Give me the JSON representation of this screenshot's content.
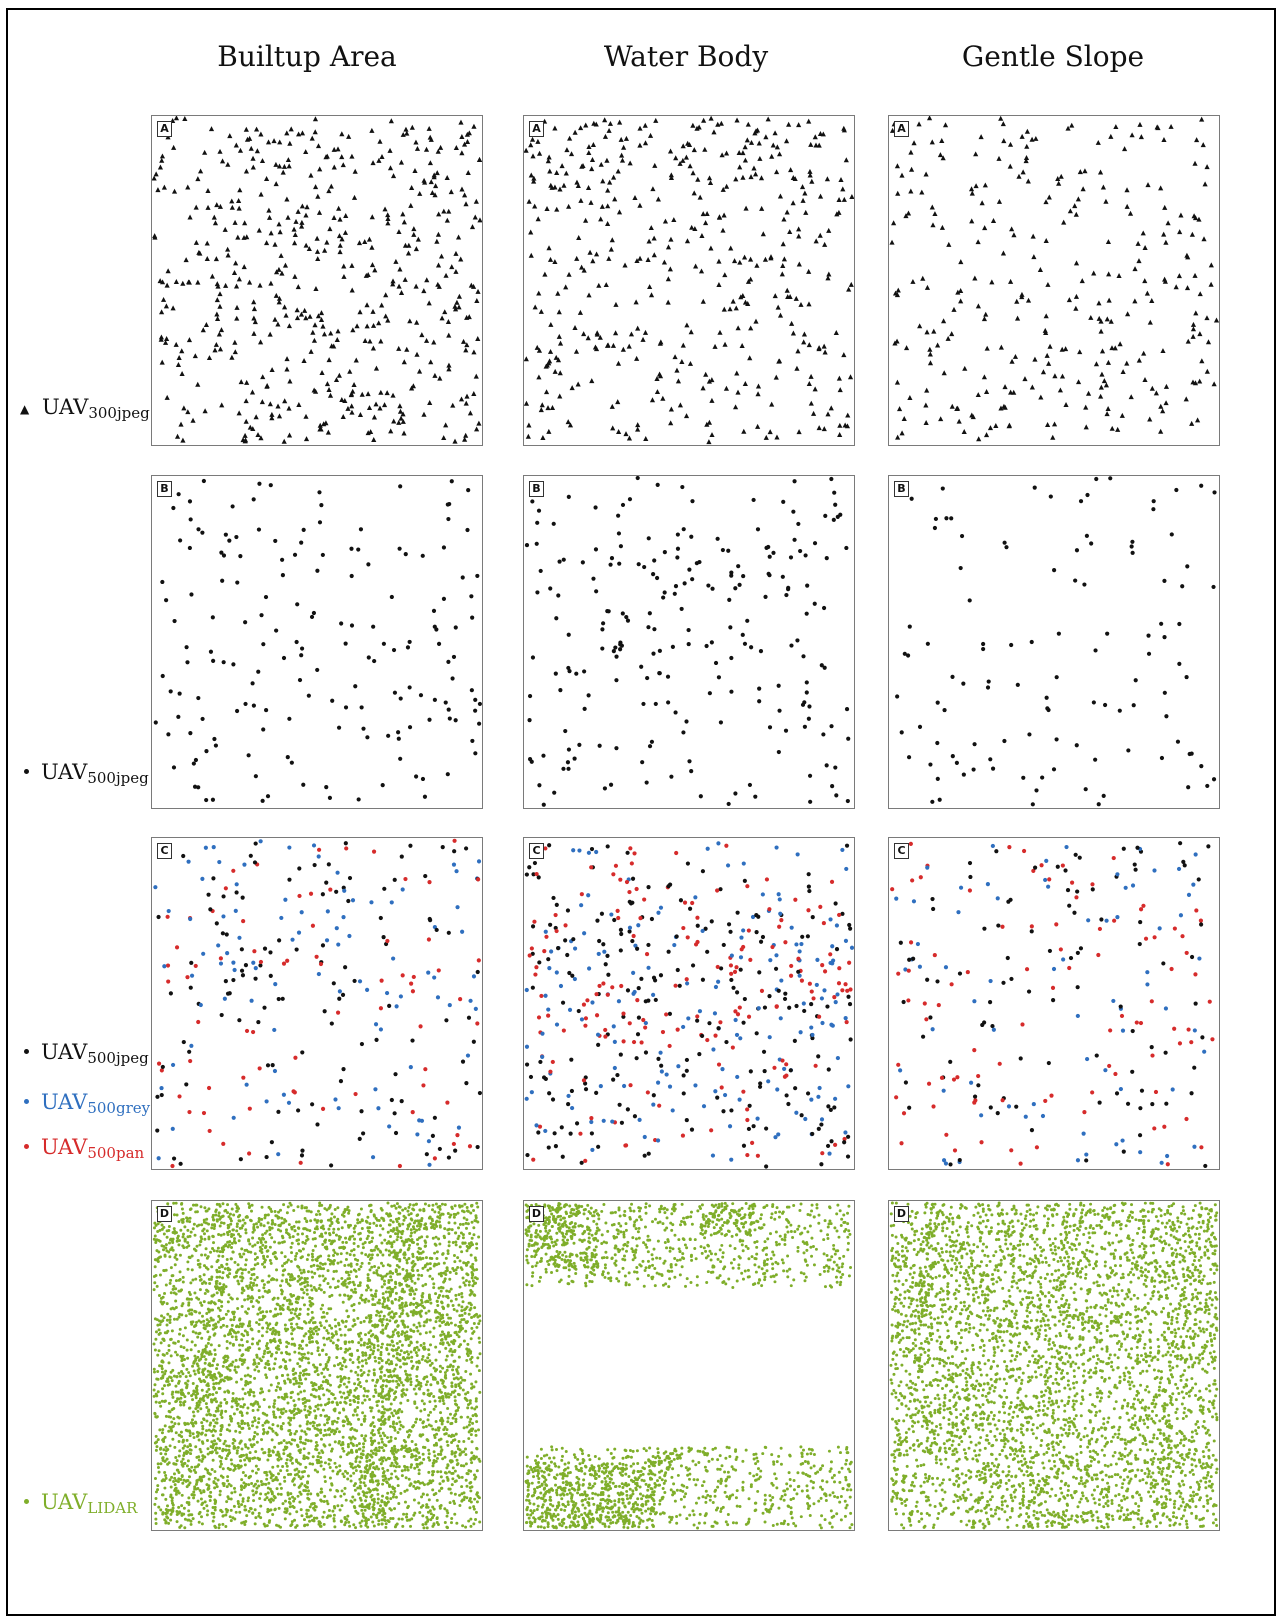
{
  "columns": [
    "Builtup Area",
    "Water Body",
    "Gentle Slope"
  ],
  "colors": {
    "black": "#111111",
    "blue": "#2f6fbf",
    "red": "#d62b2b",
    "green": "#7fae2a"
  },
  "legend": [
    {
      "base": "UAV",
      "sub": "300jpeg",
      "marker": "triangle",
      "color": "#111111"
    },
    {
      "base": "UAV",
      "sub": "500jpeg",
      "marker": "dot",
      "color": "#111111"
    },
    {
      "base": "UAV",
      "sub": "500jpeg",
      "marker": "dot",
      "color": "#111111"
    },
    {
      "base": "UAV",
      "sub": "500grey",
      "marker": "dot",
      "color": "#2f6fbf"
    },
    {
      "base": "UAV",
      "sub": "500pan",
      "marker": "dot",
      "color": "#d62b2b"
    },
    {
      "base": "UAV",
      "sub": "LIDAR",
      "marker": "dot",
      "color": "#7fae2a"
    }
  ],
  "chart_data": {
    "type": "scatter",
    "rows": [
      {
        "label": "A",
        "series": [
          "UAV300jpeg"
        ],
        "marker": "triangle"
      },
      {
        "label": "B",
        "series": [
          "UAV500jpeg"
        ],
        "marker": "dot"
      },
      {
        "label": "C",
        "series": [
          "UAV500jpeg",
          "UAV500grey",
          "UAV500pan"
        ],
        "marker": "dot"
      },
      {
        "label": "D",
        "series": [
          "UAVLIDAR"
        ],
        "marker": "dot"
      }
    ],
    "columns": [
      "Builtup Area",
      "Water Body",
      "Gentle Slope"
    ]
  }
}
